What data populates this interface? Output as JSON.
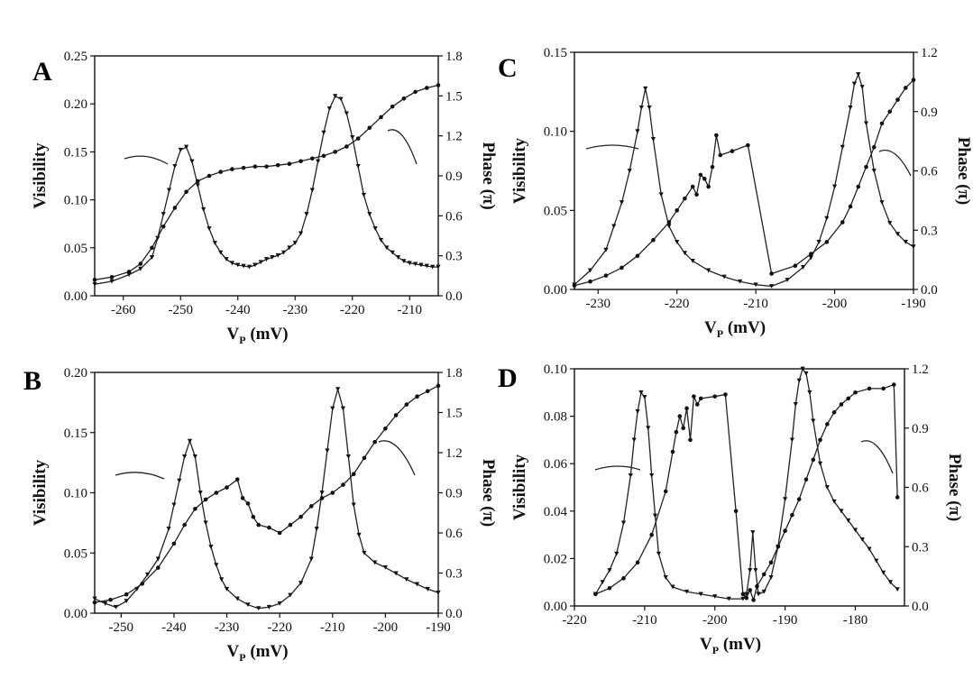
{
  "chart_data": [
    {
      "type": "line",
      "panel_label": "A",
      "xlabel": "V",
      "xlabel_sub": "P",
      "xlabel_unit": "(mV)",
      "ylabel_left": "Visibility",
      "ylabel_right": "Phase (π)",
      "xlim": [
        -265,
        -205
      ],
      "ylim_left": [
        0,
        0.25
      ],
      "ylim_right": [
        0,
        1.8
      ],
      "xticks": [
        -260,
        -250,
        -240,
        -230,
        -220,
        -210
      ],
      "yticks_left": [
        "0.00",
        "0.05",
        "0.10",
        "0.15",
        "0.20",
        "0.25"
      ],
      "yticks_right": [
        "0.0",
        "0.3",
        "0.6",
        "0.9",
        "1.2",
        "1.5",
        "1.8"
      ],
      "series": [
        {
          "name": "Visibility",
          "axis": "left",
          "marker": "triangle",
          "x": [
            -265,
            -262,
            -259,
            -257,
            -255,
            -254,
            -253,
            -252,
            -251,
            -250,
            -249,
            -248,
            -247,
            -246,
            -245,
            -244,
            -243,
            -242,
            -241,
            -240,
            -239,
            -238,
            -237,
            -236,
            -235,
            -234,
            -233,
            -232,
            -231,
            -230,
            -229,
            -228,
            -227,
            -226,
            -225,
            -224,
            -223,
            -222,
            -221,
            -220,
            -219,
            -218,
            -217,
            -216,
            -215,
            -214,
            -213,
            -212,
            -211,
            -210,
            -209,
            -208,
            -207,
            -206,
            -205
          ],
          "y": [
            0.012,
            0.015,
            0.022,
            0.028,
            0.04,
            0.06,
            0.085,
            0.11,
            0.135,
            0.152,
            0.155,
            0.14,
            0.115,
            0.09,
            0.07,
            0.055,
            0.045,
            0.038,
            0.034,
            0.032,
            0.031,
            0.03,
            0.032,
            0.035,
            0.038,
            0.04,
            0.042,
            0.045,
            0.05,
            0.055,
            0.065,
            0.085,
            0.11,
            0.14,
            0.17,
            0.195,
            0.208,
            0.205,
            0.19,
            0.165,
            0.135,
            0.105,
            0.085,
            0.07,
            0.058,
            0.05,
            0.045,
            0.04,
            0.036,
            0.034,
            0.033,
            0.032,
            0.031,
            0.03,
            0.03
          ]
        },
        {
          "name": "Phase",
          "axis": "right",
          "marker": "circle",
          "x": [
            -265,
            -262,
            -259,
            -257,
            -255,
            -253,
            -251,
            -249,
            -247,
            -245,
            -243,
            -241,
            -239,
            -237,
            -235,
            -233,
            -231,
            -229,
            -227,
            -225,
            -223,
            -221,
            -219,
            -217,
            -215,
            -213,
            -211,
            -209,
            -207,
            -205
          ],
          "y": [
            0.12,
            0.14,
            0.18,
            0.24,
            0.36,
            0.52,
            0.66,
            0.78,
            0.86,
            0.9,
            0.93,
            0.95,
            0.96,
            0.97,
            0.97,
            0.98,
            0.99,
            1.01,
            1.03,
            1.05,
            1.08,
            1.12,
            1.18,
            1.26,
            1.34,
            1.42,
            1.48,
            1.53,
            1.56,
            1.58
          ]
        }
      ],
      "annotation_arrows": [
        {
          "points_to": "left"
        },
        {
          "points_to": "right"
        }
      ]
    },
    {
      "type": "line",
      "panel_label": "B",
      "xlabel": "V",
      "xlabel_sub": "P",
      "xlabel_unit": "(mV)",
      "ylabel_left": "Visibility",
      "ylabel_right": "Phase (π)",
      "xlim": [
        -255,
        -190
      ],
      "ylim_left": [
        0,
        0.2
      ],
      "ylim_right": [
        0,
        1.8
      ],
      "xticks": [
        -250,
        -240,
        -230,
        -220,
        -210,
        -200,
        -190
      ],
      "yticks_left": [
        "0.00",
        "0.05",
        "0.10",
        "0.15",
        "0.20"
      ],
      "yticks_right": [
        "0.0",
        "0.3",
        "0.6",
        "0.9",
        "1.2",
        "1.5",
        "1.8"
      ],
      "series": [
        {
          "name": "Visibility",
          "axis": "left",
          "marker": "triangle",
          "x": [
            -255,
            -253,
            -251,
            -249,
            -247,
            -245,
            -243,
            -241,
            -240,
            -239,
            -238,
            -237,
            -236,
            -235,
            -234,
            -233,
            -232,
            -231,
            -230,
            -228,
            -226,
            -224,
            -222,
            -220,
            -218,
            -216,
            -214,
            -213,
            -212,
            -211,
            -210,
            -209,
            -208,
            -207,
            -206,
            -205,
            -204,
            -202,
            -200,
            -198,
            -196,
            -194,
            -192,
            -190
          ],
          "y": [
            0.012,
            0.008,
            0.005,
            0.01,
            0.02,
            0.032,
            0.045,
            0.07,
            0.09,
            0.11,
            0.13,
            0.143,
            0.13,
            0.1,
            0.075,
            0.055,
            0.04,
            0.028,
            0.02,
            0.012,
            0.007,
            0.004,
            0.005,
            0.008,
            0.015,
            0.025,
            0.045,
            0.07,
            0.1,
            0.135,
            0.17,
            0.186,
            0.17,
            0.13,
            0.09,
            0.065,
            0.05,
            0.042,
            0.038,
            0.033,
            0.028,
            0.024,
            0.02,
            0.017
          ]
        },
        {
          "name": "Phase",
          "axis": "right",
          "marker": "circle",
          "x": [
            -255,
            -252,
            -249,
            -246,
            -243,
            -240,
            -238,
            -236,
            -234,
            -232,
            -230,
            -228,
            -227,
            -226,
            -225,
            -224,
            -222,
            -220,
            -218,
            -216,
            -214,
            -212,
            -210,
            -208,
            -206,
            -204,
            -202,
            -200,
            -198,
            -196,
            -194,
            -192,
            -190
          ],
          "y": [
            0.08,
            0.1,
            0.14,
            0.22,
            0.34,
            0.52,
            0.66,
            0.78,
            0.85,
            0.9,
            0.94,
            1.0,
            0.86,
            0.82,
            0.72,
            0.66,
            0.64,
            0.6,
            0.66,
            0.72,
            0.8,
            0.86,
            0.9,
            0.96,
            1.04,
            1.16,
            1.28,
            1.38,
            1.48,
            1.56,
            1.62,
            1.66,
            1.7
          ]
        }
      ],
      "annotation_arrows": [
        {
          "points_to": "left"
        },
        {
          "points_to": "right"
        }
      ]
    },
    {
      "type": "line",
      "panel_label": "C",
      "xlabel": "V",
      "xlabel_sub": "P",
      "xlabel_unit": "(mV)",
      "ylabel_left": "Visibility",
      "ylabel_right": "Phase (π)",
      "xlim": [
        -233,
        -190
      ],
      "ylim_left": [
        0,
        0.15
      ],
      "ylim_right": [
        0,
        1.2
      ],
      "xticks": [
        -230,
        -220,
        -210,
        -200,
        -190
      ],
      "yticks_left": [
        "0.00",
        "0.05",
        "0.10",
        "0.15"
      ],
      "yticks_right": [
        "0.0",
        "0.3",
        "0.6",
        "0.9",
        "1.2"
      ],
      "series": [
        {
          "name": "Visibility",
          "axis": "left",
          "marker": "triangle",
          "x": [
            -233,
            -231,
            -229,
            -228,
            -227,
            -226,
            -225,
            -224.5,
            -224,
            -223.5,
            -223,
            -222,
            -221,
            -220,
            -219,
            -218,
            -216,
            -214,
            -212,
            -210,
            -208,
            -206,
            -204,
            -203,
            -202,
            -201,
            -200,
            -199,
            -198,
            -197.5,
            -197,
            -196.5,
            -196,
            -195,
            -194,
            -193,
            -192,
            -191,
            -190
          ],
          "y": [
            0.003,
            0.012,
            0.025,
            0.04,
            0.055,
            0.075,
            0.1,
            0.115,
            0.127,
            0.115,
            0.095,
            0.06,
            0.04,
            0.03,
            0.023,
            0.018,
            0.012,
            0.008,
            0.005,
            0.003,
            0.002,
            0.006,
            0.014,
            0.02,
            0.03,
            0.045,
            0.065,
            0.09,
            0.115,
            0.13,
            0.136,
            0.128,
            0.105,
            0.075,
            0.055,
            0.042,
            0.035,
            0.03,
            0.027
          ]
        },
        {
          "name": "Phase",
          "axis": "right",
          "marker": "circle",
          "x": [
            -233,
            -231,
            -229,
            -227,
            -225,
            -223,
            -221,
            -220,
            -219,
            -218,
            -217.5,
            -217,
            -216.5,
            -216,
            -215.5,
            -215,
            -214.5,
            -213,
            -211,
            -208,
            -205,
            -203,
            -201,
            -199,
            -198,
            -197,
            -196,
            -195,
            -194,
            -193,
            -192,
            -191,
            -190
          ],
          "y": [
            0.02,
            0.04,
            0.07,
            0.11,
            0.17,
            0.25,
            0.34,
            0.4,
            0.46,
            0.52,
            0.48,
            0.58,
            0.56,
            0.52,
            0.62,
            0.78,
            0.68,
            0.7,
            0.73,
            0.08,
            0.12,
            0.18,
            0.24,
            0.34,
            0.42,
            0.52,
            0.62,
            0.72,
            0.84,
            0.9,
            0.96,
            1.02,
            1.06
          ]
        }
      ],
      "annotation_arrows": [
        {
          "points_to": "left"
        },
        {
          "points_to": "right"
        }
      ]
    },
    {
      "type": "line",
      "panel_label": "D",
      "xlabel": "V",
      "xlabel_sub": "P",
      "xlabel_unit": "(mV)",
      "ylabel_left": "Visibility",
      "ylabel_right": "Phase (π)",
      "xlim": [
        -220,
        -173
      ],
      "ylim_left": [
        0,
        0.1
      ],
      "ylim_right": [
        0,
        1.2
      ],
      "xticks": [
        -220,
        -210,
        -200,
        -190,
        -180
      ],
      "yticks_left": [
        "0.00",
        "0.02",
        "0.04",
        "0.06",
        "0.08",
        "0.10"
      ],
      "yticks_right": [
        "0.0",
        "0.3",
        "0.6",
        "0.9",
        "1.2"
      ],
      "series": [
        {
          "name": "Visibility",
          "axis": "left",
          "marker": "triangle",
          "x": [
            -217,
            -216,
            -215,
            -214,
            -213,
            -212,
            -211.5,
            -211,
            -210.5,
            -210,
            -209.5,
            -209,
            -208.5,
            -208,
            -207,
            -206,
            -204,
            -202,
            -200,
            -198,
            -196,
            -195.5,
            -195,
            -194.6,
            -194.2,
            -193.8,
            -193,
            -192,
            -191,
            -190,
            -189,
            -188.5,
            -188,
            -187.5,
            -187,
            -186.5,
            -186,
            -185,
            -184,
            -183,
            -182,
            -181,
            -180,
            -179,
            -178,
            -177,
            -176,
            -175,
            -174
          ],
          "y": [
            0.005,
            0.01,
            0.015,
            0.022,
            0.035,
            0.055,
            0.07,
            0.082,
            0.09,
            0.088,
            0.075,
            0.055,
            0.038,
            0.022,
            0.012,
            0.008,
            0.006,
            0.005,
            0.004,
            0.003,
            0.003,
            0.005,
            0.015,
            0.031,
            0.015,
            0.005,
            0.006,
            0.012,
            0.025,
            0.045,
            0.07,
            0.085,
            0.095,
            0.1,
            0.098,
            0.09,
            0.078,
            0.06,
            0.05,
            0.044,
            0.04,
            0.036,
            0.032,
            0.028,
            0.024,
            0.019,
            0.014,
            0.01,
            0.007
          ]
        },
        {
          "name": "Phase",
          "axis": "right",
          "marker": "circle",
          "x": [
            -217,
            -215,
            -213,
            -211,
            -209,
            -207,
            -206,
            -205.5,
            -205,
            -204.5,
            -204,
            -203.5,
            -203,
            -202.5,
            -202,
            -200,
            -198.5,
            -197,
            -196,
            -195.5,
            -195,
            -194.5,
            -194,
            -193,
            -192,
            -191,
            -190,
            -189,
            -188,
            -187,
            -186,
            -185,
            -184,
            -183,
            -182,
            -181,
            -180,
            -178,
            -176,
            -174.5,
            -174
          ],
          "y": [
            0.06,
            0.09,
            0.14,
            0.22,
            0.36,
            0.58,
            0.78,
            0.88,
            0.96,
            0.9,
            1.0,
            0.84,
            1.06,
            1.02,
            1.05,
            1.06,
            1.07,
            0.48,
            0.06,
            0.04,
            0.08,
            0.03,
            0.1,
            0.16,
            0.22,
            0.3,
            0.38,
            0.46,
            0.54,
            0.64,
            0.74,
            0.84,
            0.92,
            0.98,
            1.02,
            1.05,
            1.08,
            1.1,
            1.1,
            1.12,
            0.55
          ]
        }
      ],
      "annotation_arrows": [
        {
          "points_to": "left"
        },
        {
          "points_to": "right"
        }
      ]
    }
  ]
}
